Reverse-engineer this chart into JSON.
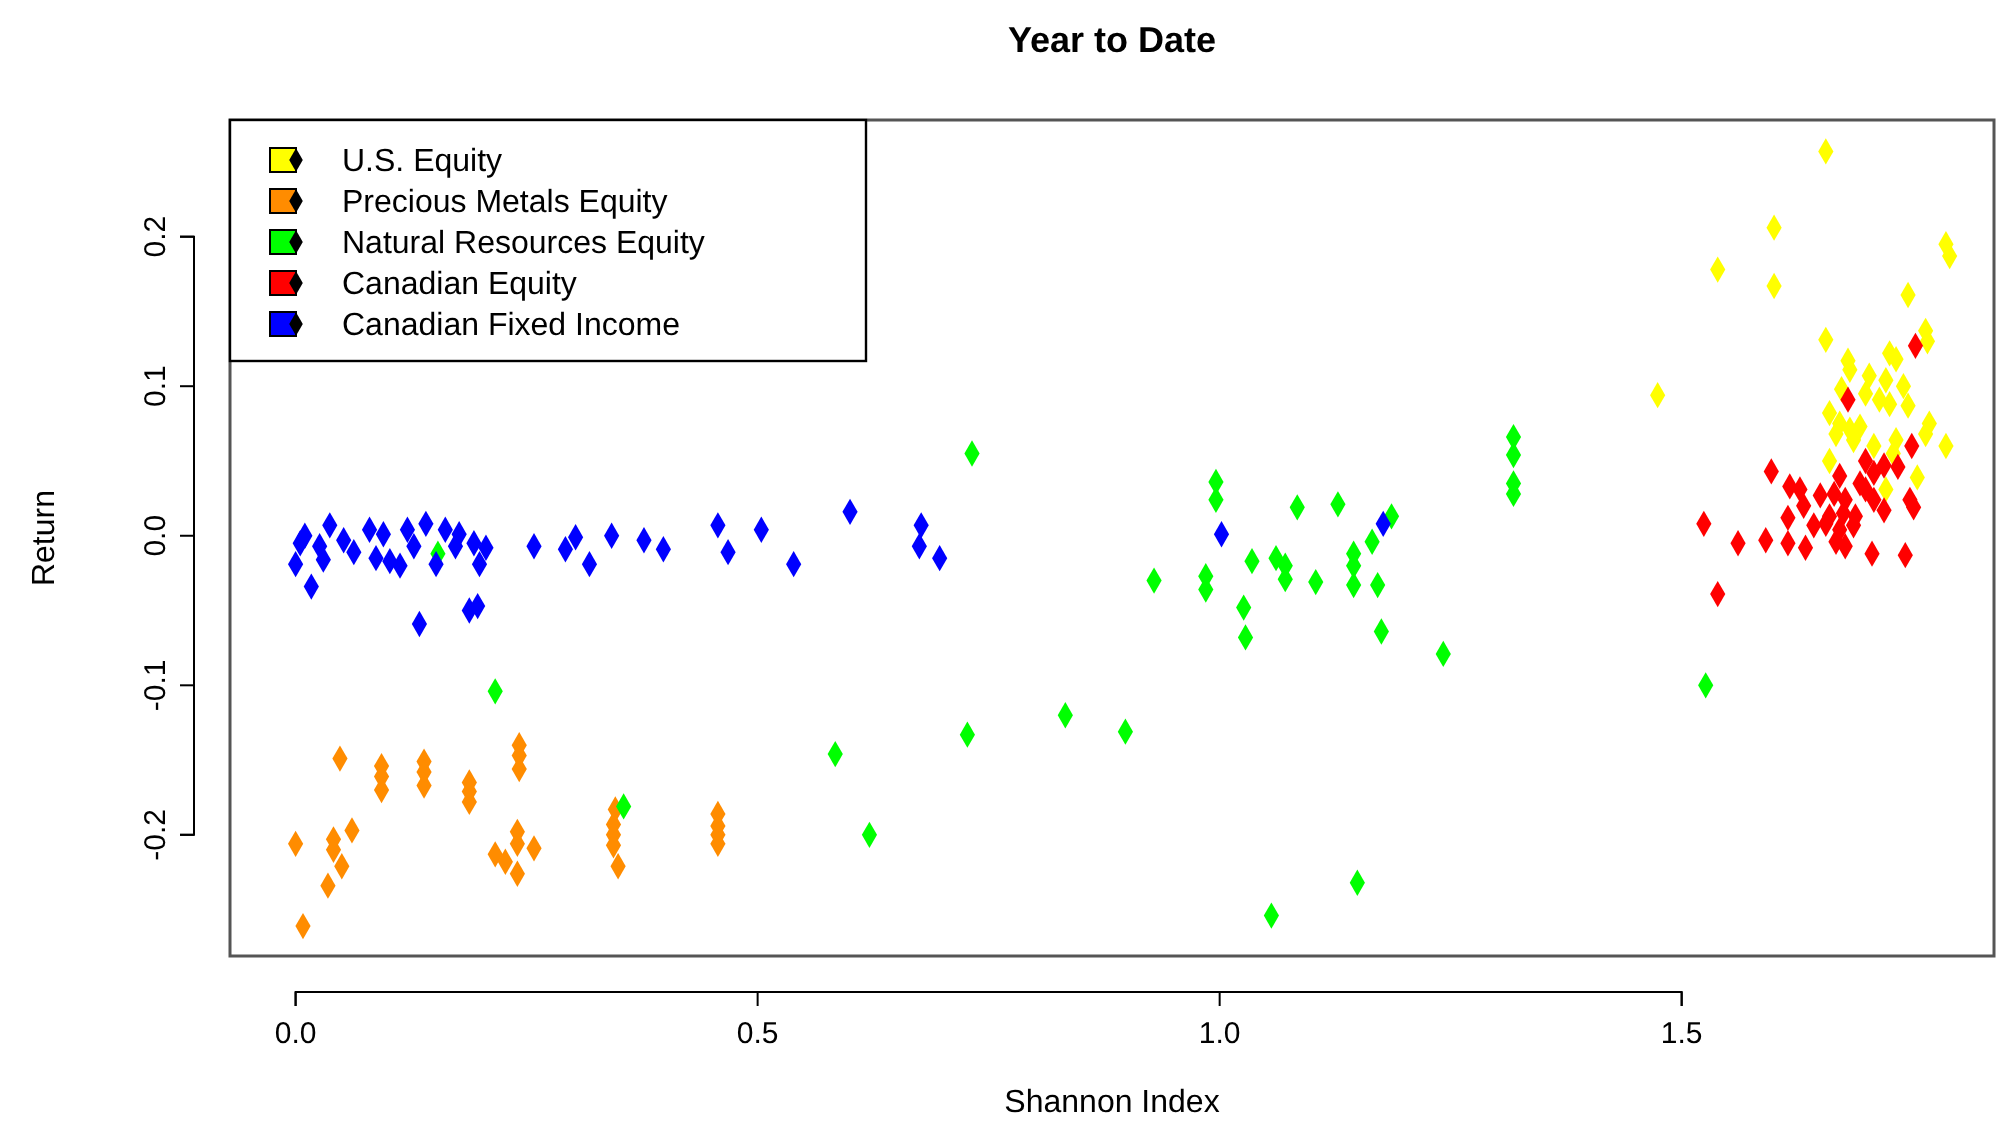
{
  "chart_data": {
    "type": "scatter",
    "title": "Year to Date",
    "xlabel": "Shannon Index",
    "ylabel": "Return",
    "marker": "diamond",
    "legend": "top left",
    "grid": false,
    "xlim": [
      -0.071,
      1.838
    ],
    "ylim": [
      -0.281,
      0.278
    ],
    "xticks": [
      {
        "value": 0,
        "label": "0.0"
      },
      {
        "value": 0.5,
        "label": "0.5"
      },
      {
        "value": 1,
        "label": "1.0"
      },
      {
        "value": 1.5,
        "label": "1.5"
      }
    ],
    "yticks": [
      {
        "value": -0.2,
        "label": "-0.2"
      },
      {
        "value": -0.1,
        "label": "-0.1"
      },
      {
        "value": 0,
        "label": "0.0"
      },
      {
        "value": 0.1,
        "label": "0.1"
      },
      {
        "value": 0.2,
        "label": "0.2"
      }
    ],
    "series": [
      {
        "name": "U.S. Equity",
        "color": "#ffff00",
        "x": [
          1.656,
          1.6,
          1.539,
          1.6,
          1.786,
          1.79,
          1.745,
          1.474,
          1.656,
          1.764,
          1.766,
          1.725,
          1.732,
          1.68,
          1.682,
          1.703,
          1.721,
          1.673,
          1.74,
          1.699,
          1.714,
          1.725,
          1.745,
          1.66,
          1.671,
          1.682,
          1.693,
          1.667,
          1.686,
          1.732,
          1.708,
          1.768,
          1.764,
          1.786,
          1.66,
          1.729,
          1.755,
          1.721
        ],
        "values": [
          0.257,
          0.206,
          0.178,
          0.167,
          0.195,
          0.187,
          0.161,
          0.094,
          0.131,
          0.137,
          0.13,
          0.122,
          0.118,
          0.117,
          0.111,
          0.107,
          0.104,
          0.098,
          0.1,
          0.095,
          0.091,
          0.088,
          0.087,
          0.082,
          0.075,
          0.071,
          0.073,
          0.068,
          0.064,
          0.064,
          0.06,
          0.075,
          0.068,
          0.06,
          0.05,
          0.055,
          0.039,
          0.031
        ]
      },
      {
        "name": "Precious Metals Equity",
        "color": "#ff8c00",
        "x": [
          0.0,
          0.008,
          0.035,
          0.041,
          0.041,
          0.05,
          0.061,
          0.048,
          0.093,
          0.093,
          0.093,
          0.139,
          0.139,
          0.139,
          0.188,
          0.188,
          0.188,
          0.242,
          0.242,
          0.242,
          0.216,
          0.227,
          0.24,
          0.24,
          0.258,
          0.24,
          0.346,
          0.344,
          0.344,
          0.344,
          0.349,
          0.457,
          0.457,
          0.457,
          0.457
        ],
        "values": [
          -0.206,
          -0.261,
          -0.234,
          -0.203,
          -0.21,
          -0.221,
          -0.197,
          -0.149,
          -0.154,
          -0.161,
          -0.17,
          -0.151,
          -0.158,
          -0.167,
          -0.165,
          -0.171,
          -0.178,
          -0.14,
          -0.147,
          -0.156,
          -0.213,
          -0.218,
          -0.198,
          -0.206,
          -0.209,
          -0.226,
          -0.183,
          -0.193,
          -0.2,
          -0.207,
          -0.221,
          -0.186,
          -0.194,
          -0.2,
          -0.206
        ]
      },
      {
        "name": "Natural Resources Equity",
        "color": "#00ff00",
        "x": [
          0.154,
          0.216,
          0.355,
          0.584,
          0.621,
          0.727,
          0.732,
          0.929,
          0.985,
          0.985,
          0.996,
          0.996,
          1.026,
          1.028,
          1.035,
          1.061,
          1.071,
          1.071,
          1.084,
          1.104,
          1.128,
          1.145,
          1.145,
          1.145,
          1.165,
          1.171,
          1.175,
          1.186,
          1.242,
          1.318,
          1.318,
          1.318,
          1.318,
          0.833,
          0.898,
          1.149,
          1.056,
          1.526
        ],
        "values": [
          -0.012,
          -0.104,
          -0.181,
          -0.146,
          -0.2,
          -0.133,
          0.055,
          -0.03,
          -0.027,
          -0.036,
          0.036,
          0.024,
          -0.048,
          -0.068,
          -0.017,
          -0.015,
          -0.02,
          -0.029,
          0.019,
          -0.031,
          0.021,
          -0.012,
          -0.02,
          -0.033,
          -0.004,
          -0.033,
          -0.064,
          0.013,
          -0.079,
          0.066,
          0.054,
          0.035,
          0.028,
          -0.12,
          -0.131,
          -0.232,
          -0.254,
          -0.1
        ]
      },
      {
        "name": "Canadian Equity",
        "color": "#ff0000",
        "x": [
          1.753,
          1.68,
          1.749,
          1.597,
          1.671,
          1.693,
          1.708,
          1.734,
          1.719,
          1.617,
          1.628,
          1.65,
          1.665,
          1.677,
          1.699,
          1.708,
          1.675,
          1.66,
          1.688,
          1.632,
          1.719,
          1.747,
          1.751,
          1.615,
          1.643,
          1.656,
          1.671,
          1.686,
          1.524,
          1.591,
          1.615,
          1.634,
          1.561,
          1.667,
          1.677,
          1.706,
          1.742,
          1.539,
          1.699
        ],
        "values": [
          0.127,
          0.091,
          0.06,
          0.043,
          0.04,
          0.035,
          0.042,
          0.046,
          0.047,
          0.033,
          0.031,
          0.027,
          0.028,
          0.024,
          0.031,
          0.024,
          0.015,
          0.013,
          0.013,
          0.02,
          0.017,
          0.024,
          0.019,
          0.012,
          0.007,
          0.008,
          0.004,
          0.007,
          0.008,
          -0.003,
          -0.005,
          -0.008,
          -0.005,
          -0.004,
          -0.007,
          -0.012,
          -0.013,
          -0.039,
          0.05
        ]
      },
      {
        "name": "Canadian Fixed Income",
        "color": "#0000ff",
        "x": [
          0.0,
          0.01,
          0.005,
          0.037,
          0.026,
          0.03,
          0.052,
          0.017,
          0.063,
          0.08,
          0.095,
          0.087,
          0.102,
          0.113,
          0.121,
          0.141,
          0.128,
          0.134,
          0.152,
          0.162,
          0.177,
          0.173,
          0.193,
          0.206,
          0.188,
          0.197,
          0.199,
          0.258,
          0.292,
          0.303,
          0.318,
          0.342,
          0.377,
          0.398,
          0.457,
          0.468,
          0.504,
          0.539,
          0.6,
          0.677,
          0.675,
          0.697,
          1.002,
          1.177
        ],
        "values": [
          -0.019,
          0.0,
          -0.005,
          0.007,
          -0.007,
          -0.016,
          -0.003,
          -0.034,
          -0.011,
          0.004,
          0.001,
          -0.015,
          -0.017,
          -0.02,
          0.004,
          0.008,
          -0.007,
          -0.059,
          -0.019,
          0.004,
          0.001,
          -0.007,
          -0.005,
          -0.008,
          -0.05,
          -0.047,
          -0.019,
          -0.007,
          -0.009,
          -0.001,
          -0.019,
          0.0,
          -0.003,
          -0.009,
          0.007,
          -0.011,
          0.004,
          -0.019,
          0.016,
          0.007,
          -0.007,
          -0.015,
          0.001,
          0.008
        ]
      }
    ]
  }
}
